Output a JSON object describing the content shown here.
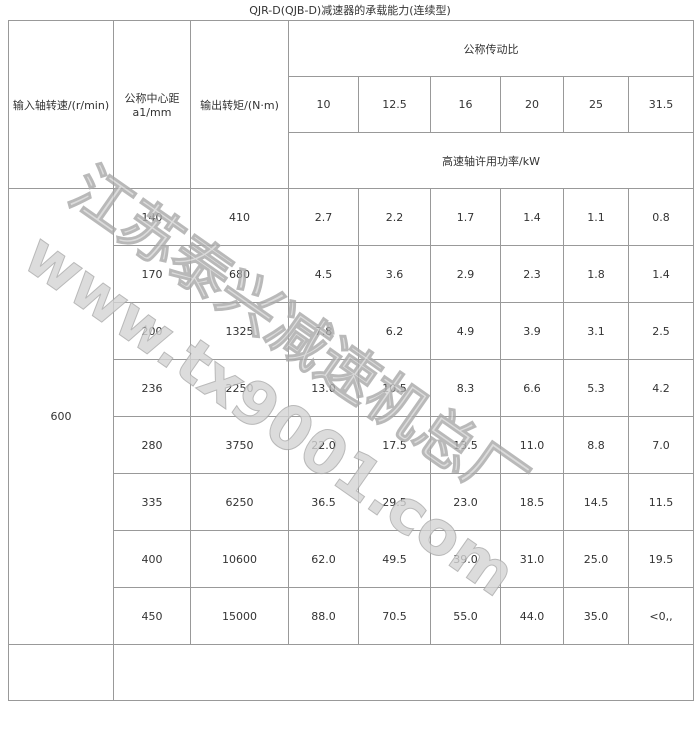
{
  "title": "QJR-D(QJB-D)减速器的承载能力(连续型)",
  "headers": {
    "input_speed": "输入轴转速/(r/min)",
    "center_distance": "公称中心距",
    "center_distance_unit": "a1/mm",
    "output_torque": "输出转矩/(N·m)",
    "ratio_group": "公称传动比",
    "ratios": [
      "10",
      "12.5",
      "16",
      "20",
      "25",
      "31.5"
    ],
    "power_label": "高速轴许用功率/kW"
  },
  "input_speed": "600",
  "rows": [
    {
      "a": "140",
      "t": "410",
      "p": [
        "2.7",
        "2.2",
        "1.7",
        "1.4",
        "1.1",
        "0.8"
      ]
    },
    {
      "a": "170",
      "t": "680",
      "p": [
        "4.5",
        "3.6",
        "2.9",
        "2.3",
        "1.8",
        "1.4"
      ]
    },
    {
      "a": "200",
      "t": "1325",
      "p": [
        "7.8",
        "6.2",
        "4.9",
        "3.9",
        "3.1",
        "2.5"
      ]
    },
    {
      "a": "236",
      "t": "2250",
      "p": [
        "13.0",
        "10.5",
        "8.3",
        "6.6",
        "5.3",
        "4.2"
      ]
    },
    {
      "a": "280",
      "t": "3750",
      "p": [
        "22.0",
        "17.5",
        "13.5",
        "11.0",
        "8.8",
        "7.0"
      ]
    },
    {
      "a": "335",
      "t": "6250",
      "p": [
        "36.5",
        "29.5",
        "23.0",
        "18.5",
        "14.5",
        "11.5"
      ]
    },
    {
      "a": "400",
      "t": "10600",
      "p": [
        "62.0",
        "49.5",
        "39.0",
        "31.0",
        "25.0",
        "19.5"
      ]
    },
    {
      "a": "450",
      "t": "15000",
      "p": [
        "88.0",
        "70.5",
        "55.0",
        "44.0",
        "35.0",
        "<0,,"
      ]
    }
  ],
  "watermark": {
    "line1": "江苏泰兴减速机总厂",
    "line2": "www.tx9001.com"
  }
}
